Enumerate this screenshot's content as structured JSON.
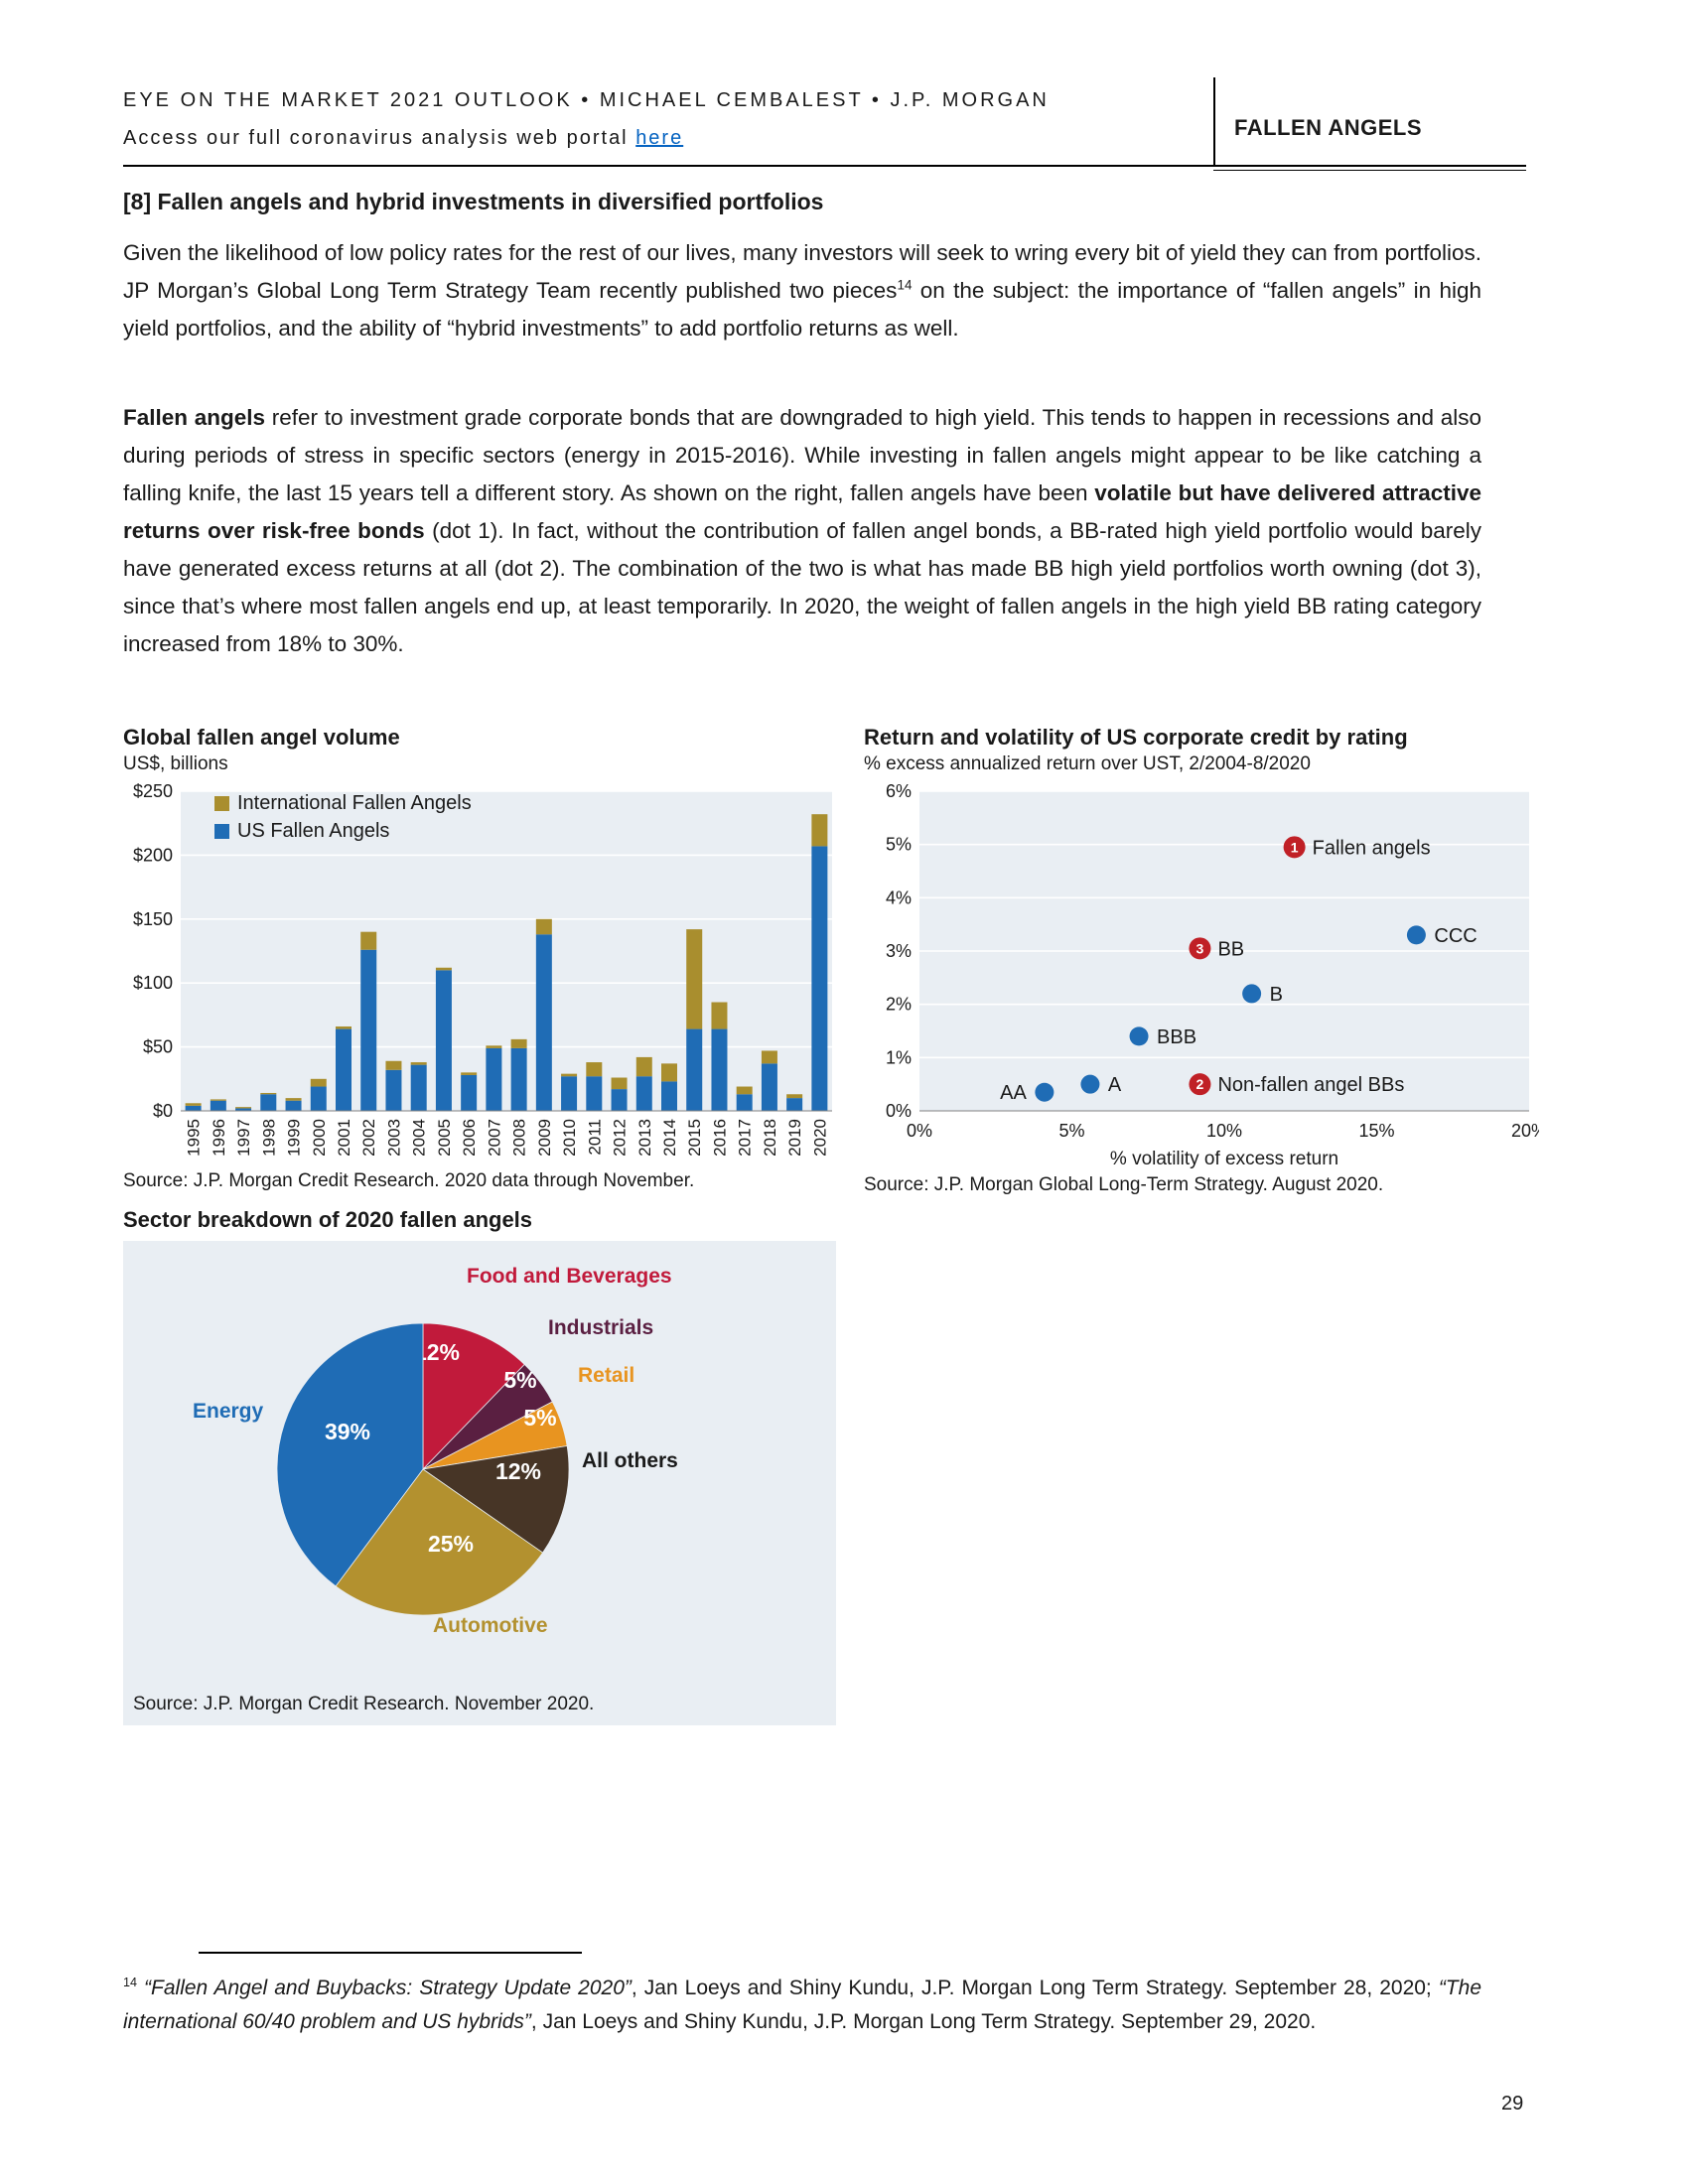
{
  "header": {
    "line1": "EYE ON THE MARKET 2021 OUTLOOK • MICHAEL CEMBALEST • J.P. MORGAN",
    "line2_prefix": "Access our full coronavirus analysis web portal ",
    "line2_link": "here",
    "right_title": "FALLEN ANGELS"
  },
  "section": {
    "title": "[8] Fallen angels and hybrid investments in diversified portfolios"
  },
  "para1": {
    "t1": "Given the likelihood of low policy rates for the rest of our lives, many investors will seek to wring every bit of yield they can from portfolios.  JP Morgan’s Global Long Term Strategy Team recently published two pieces",
    "sup": "14",
    "t2": " on the subject: the importance of “fallen angels” in high yield portfolios, and the ability of “hybrid investments” to add portfolio returns as well."
  },
  "para2": {
    "b1": "Fallen angels",
    "t1": " refer to investment grade corporate bonds that are downgraded to high yield.  This tends to happen in recessions and also during periods of stress in specific sectors (energy in 2015-2016).   While investing in fallen angels might appear to be like catching a falling knife, the last 15 years tell a different story.   As shown on the right, fallen angels have been ",
    "b2": "volatile but have delivered attractive returns over risk-free bonds",
    "t2": " (dot 1).  In fact, without the contribution of fallen angel bonds, a BB-rated high yield portfolio would barely have generated excess returns at all (dot 2).  The combination of the two is what has made BB high yield portfolios worth owning (dot 3), since that’s where most fallen angels end up, at least temporarily.  In 2020, the weight of fallen angels in the high yield BB rating category increased from 18% to 30%."
  },
  "chart_data": [
    {
      "type": "bar",
      "title": "Global fallen angel volume",
      "subtitle": "US$, billions",
      "categories": [
        "1995",
        "1996",
        "1997",
        "1998",
        "1999",
        "2000",
        "2001",
        "2002",
        "2003",
        "2004",
        "2005",
        "2006",
        "2007",
        "2008",
        "2009",
        "2010",
        "2011",
        "2012",
        "2013",
        "2014",
        "2015",
        "2016",
        "2017",
        "2018",
        "2019",
        "2020"
      ],
      "series": [
        {
          "name": "International Fallen Angels",
          "color": "#A98E2E",
          "values": [
            2,
            1,
            1,
            1,
            2,
            6,
            2,
            14,
            7,
            2,
            2,
            2,
            2,
            7,
            12,
            2,
            11,
            9,
            15,
            14,
            78,
            21,
            6,
            10,
            3,
            25
          ]
        },
        {
          "name": "US Fallen Angels",
          "color": "#1F6CB5",
          "values": [
            4,
            8,
            2,
            13,
            8,
            19,
            64,
            126,
            32,
            36,
            110,
            28,
            49,
            49,
            138,
            27,
            27,
            17,
            27,
            23,
            64,
            64,
            13,
            37,
            10,
            207
          ]
        }
      ],
      "ylim": [
        0,
        250
      ],
      "ytick_step": 50,
      "ytick_labels": [
        "$0",
        "$50",
        "$100",
        "$150",
        "$200",
        "$250"
      ],
      "grid": true,
      "legend_position": "top-left",
      "source": "Source: J.P. Morgan Credit Research. 2020 data through November."
    },
    {
      "type": "scatter",
      "title": "Return and volatility of US corporate credit by rating",
      "subtitle": "% excess annualized return over UST, 2/2004-8/2020",
      "xlabel": "% volatility of excess return",
      "xlim": [
        0,
        20
      ],
      "ylim": [
        0,
        6
      ],
      "xtick_labels": [
        "0%",
        "5%",
        "10%",
        "15%",
        "20%"
      ],
      "ytick_labels": [
        "0%",
        "1%",
        "2%",
        "3%",
        "4%",
        "5%",
        "6%"
      ],
      "grid": true,
      "point_color": "#1F6CB5",
      "numbered_color": "#C02026",
      "points": [
        {
          "label": "AA",
          "x": 4.1,
          "y": 0.35,
          "style": "plain",
          "side": "left"
        },
        {
          "label": "A",
          "x": 5.6,
          "y": 0.5,
          "style": "plain",
          "side": "right"
        },
        {
          "label": "BBB",
          "x": 7.2,
          "y": 1.4,
          "style": "plain",
          "side": "right"
        },
        {
          "label": "B",
          "x": 10.9,
          "y": 2.2,
          "style": "plain",
          "side": "right"
        },
        {
          "label": "CCC",
          "x": 16.3,
          "y": 3.3,
          "style": "plain",
          "side": "right"
        },
        {
          "label": "BB",
          "x": 9.2,
          "y": 3.05,
          "style": "numbered",
          "number": "3",
          "side": "right"
        },
        {
          "label": "Fallen angels",
          "x": 12.3,
          "y": 4.95,
          "style": "numbered",
          "number": "1",
          "side": "right"
        },
        {
          "label": "Non-fallen angel BBs",
          "x": 9.2,
          "y": 0.5,
          "style": "numbered",
          "number": "2",
          "side": "right"
        }
      ],
      "source": "Source: J.P. Morgan Global Long-Term Strategy. August 2020."
    },
    {
      "type": "pie",
      "title": "Sector breakdown of 2020 fallen angels",
      "slices": [
        {
          "label": "Food and Beverages",
          "pct": "12%",
          "value": 12,
          "color": "#C11A3B"
        },
        {
          "label": "Industrials",
          "pct": "5%",
          "value": 5,
          "color": "#5A1F41"
        },
        {
          "label": "Retail",
          "pct": "5%",
          "value": 5,
          "color": "#E89420"
        },
        {
          "label": "All others",
          "pct": "12%",
          "value": 12,
          "color": "#473526",
          "label_color": "#1a1a1a"
        },
        {
          "label": "Automotive",
          "pct": "25%",
          "value": 25,
          "color": "#B3912F"
        },
        {
          "label": "Energy",
          "pct": "39%",
          "value": 39,
          "color": "#1F6CB5"
        }
      ],
      "source": "Source: J.P. Morgan Credit Research. November 2020."
    }
  ],
  "footnote": {
    "sup": "14",
    "i1": "“Fallen Angel and Buybacks: Strategy Update 2020”",
    "t1": ", Jan Loeys and Shiny Kundu, J.P. Morgan Long Term Strategy. September 28, 2020; ",
    "i2": "“The international 60/40 problem and US hybrids”",
    "t2": ", Jan Loeys and Shiny Kundu, J.P. Morgan Long Term Strategy. September 29, 2020."
  },
  "page_number": "29"
}
